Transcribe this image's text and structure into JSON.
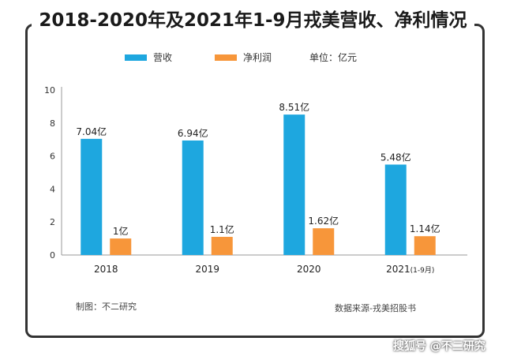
{
  "title": "2018-2020年及2021年1-9月戎美营收、净利情况",
  "legend": {
    "revenue_label": "营收",
    "profit_label": "净利润",
    "unit_label": "单位：亿元"
  },
  "colors": {
    "revenue": "#1ea7df",
    "profit": "#f7963a",
    "axis": "#999999"
  },
  "footer": {
    "left": "制图：不二研究",
    "right": "数据来源-戎美招股书"
  },
  "watermark": "搜狐号 @不二研究",
  "chart_data": {
    "type": "bar",
    "categories": [
      "2018",
      "2019",
      "2020",
      "2021"
    ],
    "category_suffix": [
      "",
      "",
      "",
      "(1-9月)"
    ],
    "series": [
      {
        "name": "营收",
        "values": [
          7.04,
          6.94,
          8.51,
          5.48
        ],
        "labels": [
          "7.04亿",
          "6.94亿",
          "8.51亿",
          "5.48亿"
        ]
      },
      {
        "name": "净利润",
        "values": [
          1,
          1.1,
          1.62,
          1.14
        ],
        "labels": [
          "1亿",
          "1.1亿",
          "1.62亿",
          "1.14亿"
        ]
      }
    ],
    "yticks": [
      "0",
      "2",
      "4",
      "6",
      "8",
      "10"
    ],
    "ylim": [
      0,
      10
    ],
    "grid": false,
    "legend_position": "top"
  }
}
